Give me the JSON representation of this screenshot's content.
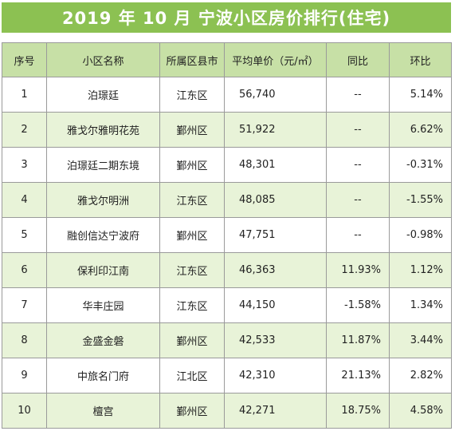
{
  "title": "2019 年 10 月  宁波小区房价排行(住宅)",
  "headers": [
    "序号",
    "小区名称",
    "所属区县市",
    "平均单价（元/㎡）",
    "同比",
    "环比"
  ],
  "rows": [
    {
      "rank": "1",
      "name": "泊璟廷",
      "district": "江东区",
      "price": "56,740",
      "yoy": "--",
      "mom": "5.14%"
    },
    {
      "rank": "2",
      "name": "雅戈尔雅明花苑",
      "district": "鄞州区",
      "price": "51,922",
      "yoy": "--",
      "mom": "6.62%"
    },
    {
      "rank": "3",
      "name": "泊璟廷二期东境",
      "district": "鄞州区",
      "price": "48,301",
      "yoy": "--",
      "mom": "-0.31%"
    },
    {
      "rank": "4",
      "name": "雅戈尔明洲",
      "district": "江东区",
      "price": "48,085",
      "yoy": "--",
      "mom": "-1.55%"
    },
    {
      "rank": "5",
      "name": "融创信达宁波府",
      "district": "鄞州区",
      "price": "47,751",
      "yoy": "--",
      "mom": "-0.98%"
    },
    {
      "rank": "6",
      "name": "保利印江南",
      "district": "江东区",
      "price": "46,363",
      "yoy": "11.93%",
      "mom": "1.12%"
    },
    {
      "rank": "7",
      "name": "华丰庄园",
      "district": "江东区",
      "price": "44,150",
      "yoy": "-1.58%",
      "mom": "1.34%"
    },
    {
      "rank": "8",
      "name": "金盛金磐",
      "district": "鄞州区",
      "price": "42,533",
      "yoy": "11.87%",
      "mom": "3.44%"
    },
    {
      "rank": "9",
      "name": "中旅名门府",
      "district": "江北区",
      "price": "42,310",
      "yoy": "21.13%",
      "mom": "2.82%"
    },
    {
      "rank": "10",
      "name": "檀宫",
      "district": "鄞州区",
      "price": "42,271",
      "yoy": "18.75%",
      "mom": "4.58%"
    }
  ],
  "colors": {
    "title_bg": "#8cc152",
    "header_bg": "#c7e0a6",
    "shade_bg": "#e8f3d8"
  }
}
